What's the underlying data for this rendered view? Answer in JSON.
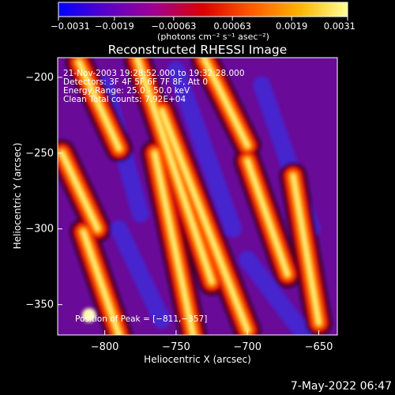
{
  "chart_data": {
    "type": "heatmap",
    "title": "Reconstructed RHESSI Image",
    "xlabel": "Heliocentric X (arcsec)",
    "ylabel": "Heliocentric Y (arcsec)",
    "xlim": [
      -833,
      -637
    ],
    "ylim": [
      -370,
      -187
    ],
    "x_ticks": [
      -800,
      -750,
      -700,
      -650
    ],
    "y_ticks": [
      -350,
      -300,
      -250,
      -200
    ],
    "x_tick_labels": [
      "−800",
      "−750",
      "−700",
      "−650"
    ],
    "y_tick_labels": [
      "−350",
      "−300",
      "−250",
      "−200"
    ],
    "colorbar": {
      "min": -0.0031,
      "max": 0.0031,
      "tick_values": [
        -0.0031,
        -0.0019,
        -0.00063,
        0.00063,
        0.0019,
        0.0031
      ],
      "tick_labels": [
        "−0.0031",
        "−0.0019",
        "−0.00063",
        "0.00063",
        "0.0019",
        "0.0031"
      ],
      "units_label": "(photons cm⁻² s⁻¹ asec⁻²)",
      "colors": [
        "#0000ff",
        "#5a00c8",
        "#a00090",
        "#dc0000",
        "#ff5a00",
        "#ffb400",
        "#ffff96"
      ]
    },
    "annotations": [
      "21-Nov-2003 19:28:52.000 to 19:32:28.000",
      "Detectors: 3F 4F 5F 6F 7F 8F, Att 0",
      "Energy Range: 25.0 - 50.0 keV",
      "Clean     Total counts: 7.92E+04"
    ],
    "peak": {
      "label": "Position of Peak = [−811,−357]",
      "x": -811,
      "y": -357
    },
    "ridges": [
      {
        "x1": -818,
        "y1": -190,
        "x2": -790,
        "y2": -247
      },
      {
        "x1": -830,
        "y1": -250,
        "x2": -805,
        "y2": -300
      },
      {
        "x1": -777,
        "y1": -188,
        "x2": -725,
        "y2": -335
      },
      {
        "x1": -765,
        "y1": -250,
        "x2": -738,
        "y2": -370
      },
      {
        "x1": -760,
        "y1": -222,
        "x2": -700,
        "y2": -367
      },
      {
        "x1": -815,
        "y1": -302,
        "x2": -790,
        "y2": -370
      },
      {
        "x1": -730,
        "y1": -188,
        "x2": -700,
        "y2": -245
      },
      {
        "x1": -700,
        "y1": -255,
        "x2": -672,
        "y2": -330
      },
      {
        "x1": -668,
        "y1": -265,
        "x2": -650,
        "y2": -362
      }
    ]
  },
  "footer": {
    "timestamp": "7-May-2022 06:47"
  }
}
